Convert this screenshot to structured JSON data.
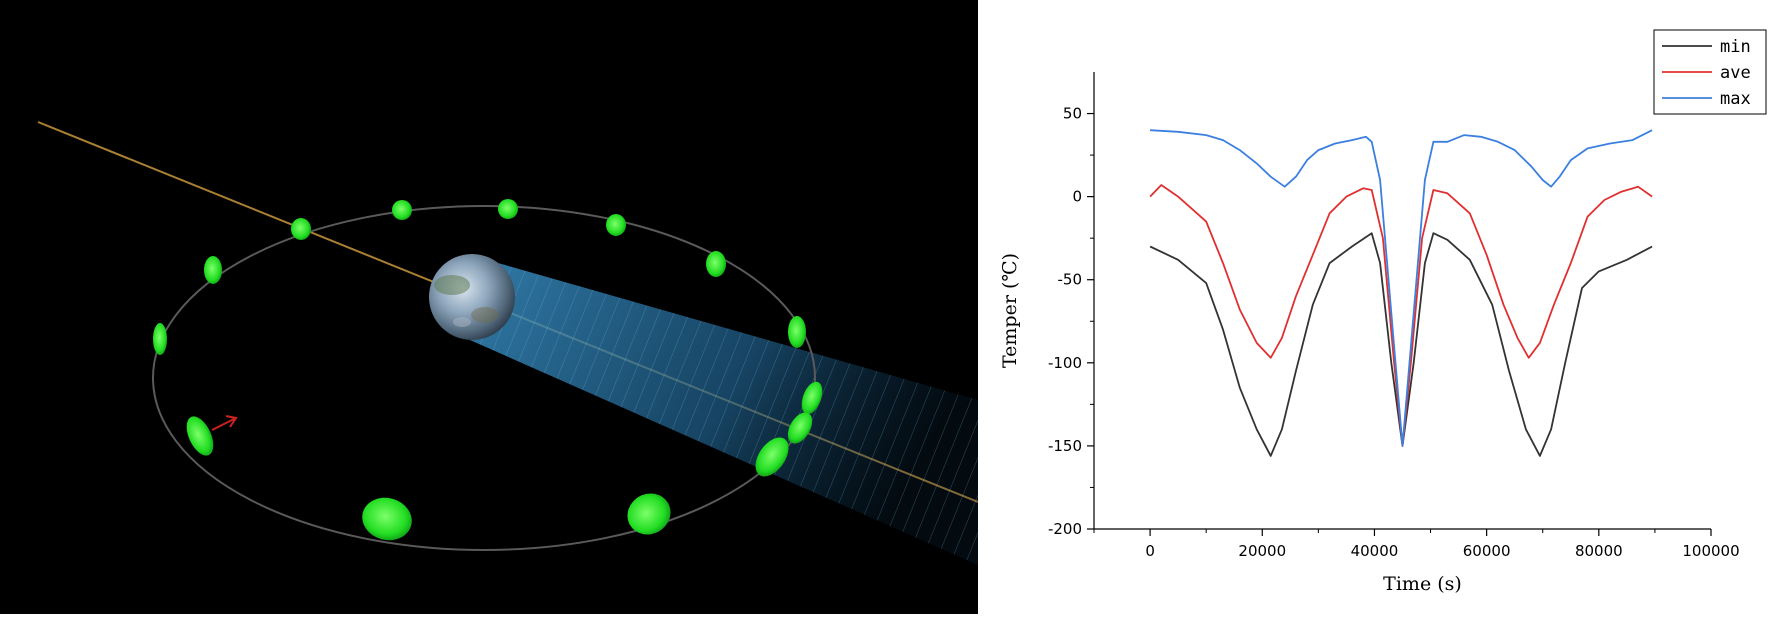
{
  "scene": {
    "icons": {
      "earth": "earth-globe-icon",
      "sun_line": "sun-vector-line",
      "shadow": "earth-shadow-cylinder",
      "satellite": "satellite-marker-icon",
      "direction": "velocity-arrow-icon"
    },
    "colors": {
      "background": "#000000",
      "orbit": "#5a5a5a",
      "satellite": "#22dd22",
      "sun_line": "#c8963c",
      "shadow": "#2a7fb0",
      "arrow": "#cc2222"
    }
  },
  "chart_data": {
    "type": "line",
    "title": "",
    "xlabel": "Time (s)",
    "ylabel": "Temper (℃)",
    "xlim": [
      -10000,
      100000
    ],
    "ylim": [
      -200,
      75
    ],
    "xticks": [
      0,
      20000,
      40000,
      60000,
      80000,
      100000
    ],
    "yticks": [
      50,
      0,
      -50,
      -100,
      -150,
      -200
    ],
    "legend_position": "top-right",
    "series": [
      {
        "name": "min",
        "color": "#333333",
        "points": [
          [
            0,
            -30
          ],
          [
            5000,
            -38
          ],
          [
            10000,
            -52
          ],
          [
            13000,
            -80
          ],
          [
            16000,
            -115
          ],
          [
            19000,
            -140
          ],
          [
            21500,
            -156
          ],
          [
            23500,
            -140
          ],
          [
            26000,
            -105
          ],
          [
            29000,
            -65
          ],
          [
            32000,
            -40
          ],
          [
            36000,
            -30
          ],
          [
            39500,
            -22
          ],
          [
            41000,
            -40
          ],
          [
            43000,
            -100
          ],
          [
            45000,
            -150
          ],
          [
            47000,
            -100
          ],
          [
            49000,
            -40
          ],
          [
            50500,
            -22
          ],
          [
            53000,
            -26
          ],
          [
            57000,
            -38
          ],
          [
            61000,
            -65
          ],
          [
            64000,
            -105
          ],
          [
            67000,
            -140
          ],
          [
            69500,
            -156
          ],
          [
            71500,
            -140
          ],
          [
            74000,
            -100
          ],
          [
            77000,
            -55
          ],
          [
            80000,
            -45
          ],
          [
            85000,
            -38
          ],
          [
            89500,
            -30
          ]
        ]
      },
      {
        "name": "ave",
        "color": "#e03030",
        "points": [
          [
            0,
            0
          ],
          [
            2000,
            7
          ],
          [
            5000,
            0
          ],
          [
            10000,
            -15
          ],
          [
            13000,
            -40
          ],
          [
            16000,
            -68
          ],
          [
            19000,
            -88
          ],
          [
            21500,
            -97
          ],
          [
            23500,
            -85
          ],
          [
            26000,
            -60
          ],
          [
            29000,
            -35
          ],
          [
            32000,
            -10
          ],
          [
            35000,
            0
          ],
          [
            38000,
            5
          ],
          [
            39500,
            4
          ],
          [
            41500,
            -25
          ],
          [
            43500,
            -100
          ],
          [
            45000,
            -150
          ],
          [
            46500,
            -100
          ],
          [
            48500,
            -25
          ],
          [
            50500,
            4
          ],
          [
            53000,
            2
          ],
          [
            57000,
            -10
          ],
          [
            60000,
            -35
          ],
          [
            63000,
            -65
          ],
          [
            65500,
            -85
          ],
          [
            67500,
            -97
          ],
          [
            69500,
            -88
          ],
          [
            72000,
            -65
          ],
          [
            75000,
            -40
          ],
          [
            78000,
            -12
          ],
          [
            81000,
            -2
          ],
          [
            84000,
            3
          ],
          [
            87000,
            6
          ],
          [
            89500,
            0
          ]
        ]
      },
      {
        "name": "max",
        "color": "#3b7fe0",
        "points": [
          [
            0,
            40
          ],
          [
            5000,
            39
          ],
          [
            10000,
            37
          ],
          [
            13000,
            34
          ],
          [
            16000,
            28
          ],
          [
            19000,
            20
          ],
          [
            21500,
            12
          ],
          [
            24000,
            6
          ],
          [
            26000,
            12
          ],
          [
            28000,
            22
          ],
          [
            30000,
            28
          ],
          [
            33000,
            32
          ],
          [
            36000,
            34
          ],
          [
            38500,
            36
          ],
          [
            39500,
            33
          ],
          [
            41000,
            10
          ],
          [
            43000,
            -70
          ],
          [
            45000,
            -150
          ],
          [
            47000,
            -70
          ],
          [
            49000,
            10
          ],
          [
            50500,
            33
          ],
          [
            53000,
            33
          ],
          [
            56000,
            37
          ],
          [
            59000,
            36
          ],
          [
            62000,
            33
          ],
          [
            65000,
            28
          ],
          [
            68000,
            18
          ],
          [
            70000,
            10
          ],
          [
            71500,
            6
          ],
          [
            73000,
            12
          ],
          [
            75000,
            22
          ],
          [
            78000,
            29
          ],
          [
            82000,
            32
          ],
          [
            86000,
            34
          ],
          [
            89500,
            40
          ]
        ]
      }
    ]
  }
}
